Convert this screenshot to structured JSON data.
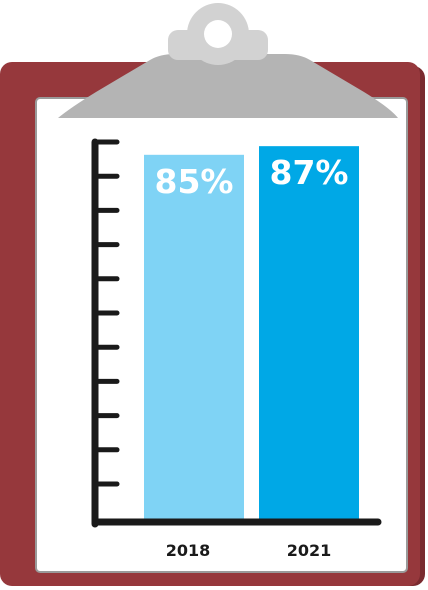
{
  "chart_data": {
    "type": "bar",
    "categories": [
      "2018",
      "2021"
    ],
    "values": [
      85,
      87
    ],
    "data_labels": [
      "85%",
      "87%"
    ],
    "ylim": [
      0,
      100
    ],
    "colors": [
      "#7fd3f5",
      "#00a8e6"
    ],
    "grid": false,
    "legend": "none",
    "title": "",
    "xlabel": "",
    "ylabel": ""
  },
  "colors": {
    "board": "#96383c",
    "board_edge": "#7a2a2f",
    "paper": "#ffffff",
    "paper_border": "#9a9a9a",
    "clip": "#d2d2d2",
    "clip_dark": "#b4b4b4",
    "axis": "#1a1a1a"
  },
  "icons": {
    "clipboard": "clipboard-icon",
    "clip": "clip-icon"
  }
}
